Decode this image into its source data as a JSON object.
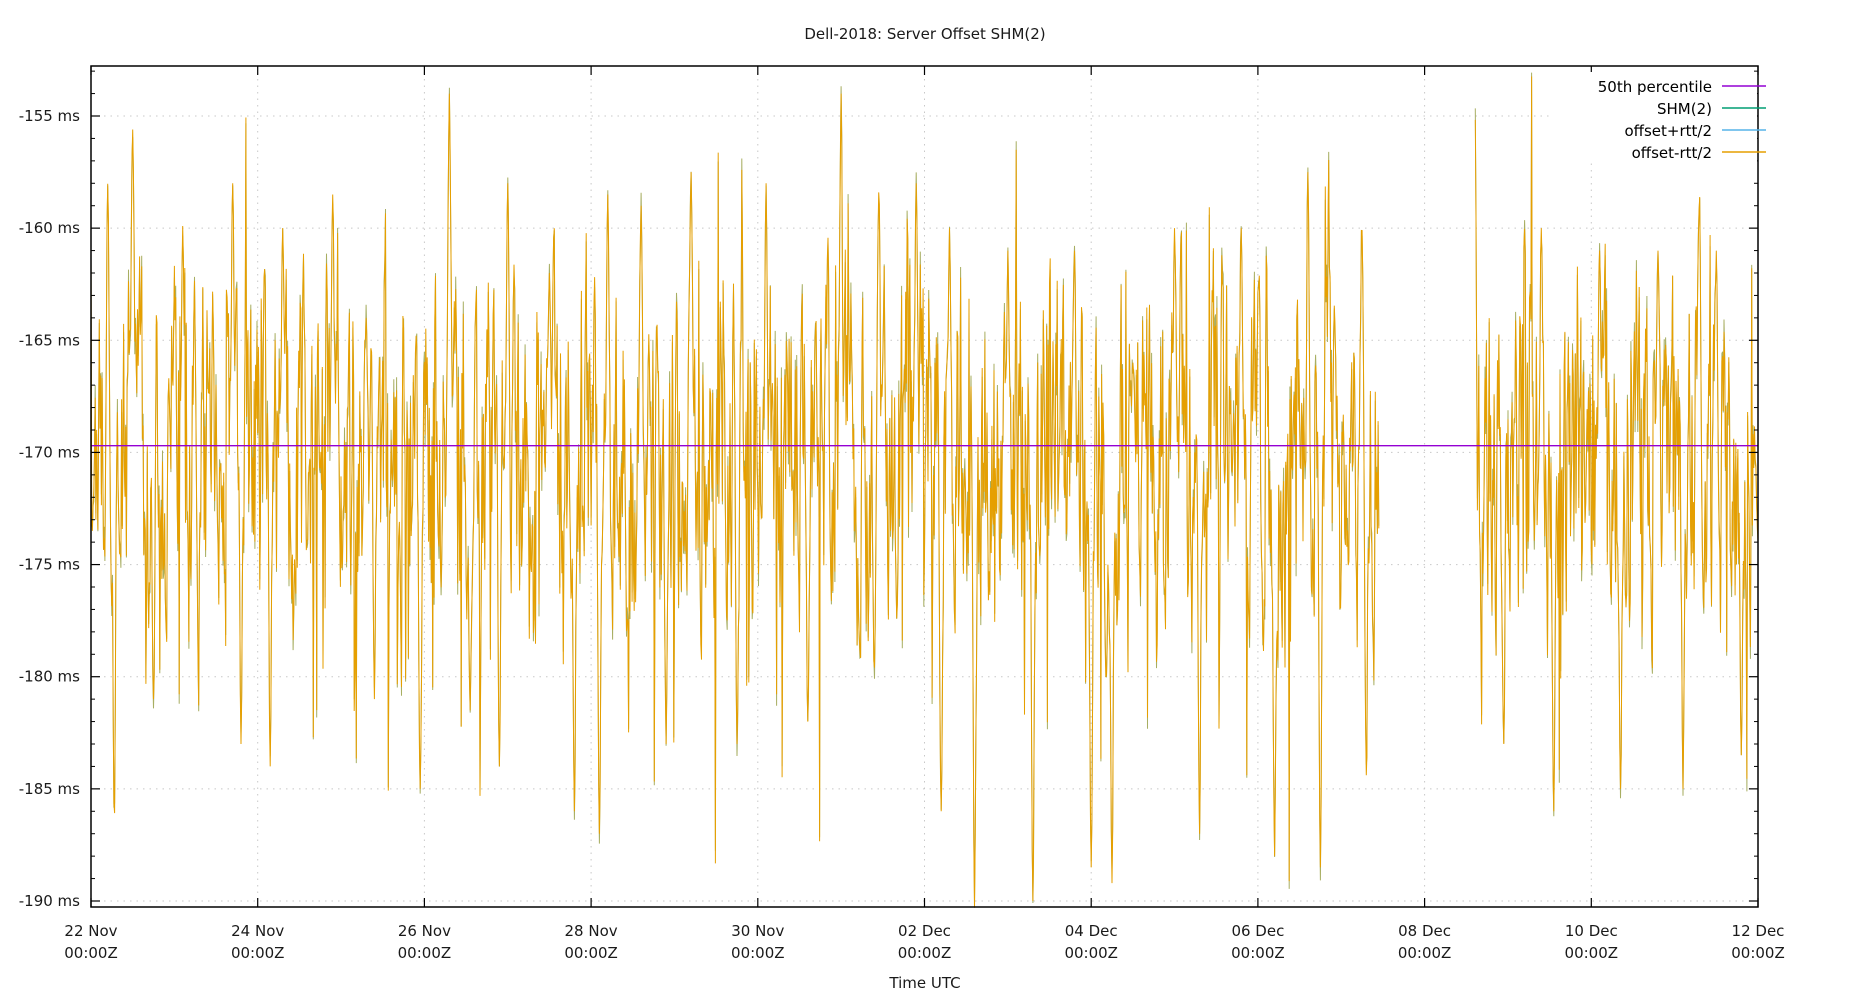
{
  "chart_data": {
    "type": "line",
    "title": "Dell-2018: Server Offset SHM(2)",
    "xlabel": "Time UTC",
    "ylabel": "",
    "x_ticks": [
      {
        "day": 0,
        "line1": "22 Nov",
        "line2": "00:00Z"
      },
      {
        "day": 2,
        "line1": "24 Nov",
        "line2": "00:00Z"
      },
      {
        "day": 4,
        "line1": "26 Nov",
        "line2": "00:00Z"
      },
      {
        "day": 6,
        "line1": "28 Nov",
        "line2": "00:00Z"
      },
      {
        "day": 8,
        "line1": "30 Nov",
        "line2": "00:00Z"
      },
      {
        "day": 10,
        "line1": "02 Dec",
        "line2": "00:00Z"
      },
      {
        "day": 12,
        "line1": "04 Dec",
        "line2": "00:00Z"
      },
      {
        "day": 14,
        "line1": "06 Dec",
        "line2": "00:00Z"
      },
      {
        "day": 16,
        "line1": "08 Dec",
        "line2": "00:00Z"
      },
      {
        "day": 18,
        "line1": "10 Dec",
        "line2": "00:00Z"
      },
      {
        "day": 20,
        "line1": "12 Dec",
        "line2": "00:00Z"
      }
    ],
    "xlim_days": [
      0,
      20
    ],
    "y_ticks": [
      {
        "value": -155,
        "label": "-155 ms"
      },
      {
        "value": -160,
        "label": "-160 ms"
      },
      {
        "value": -165,
        "label": "-165 ms"
      },
      {
        "value": -170,
        "label": "-170 ms"
      },
      {
        "value": -175,
        "label": "-175 ms"
      },
      {
        "value": -180,
        "label": "-180 ms"
      },
      {
        "value": -185,
        "label": "-185 ms"
      },
      {
        "value": -190,
        "label": "-190 ms"
      }
    ],
    "ylim": [
      -190.3,
      -152.6
    ],
    "grid": true,
    "legend_position": "top-right",
    "series": [
      {
        "name": "50th percentile",
        "color": "#9400d3",
        "kind": "constant",
        "value": -169.7
      },
      {
        "name": "SHM(2)",
        "color": "#009e73",
        "kind": "trace"
      },
      {
        "name": "offset+rtt/2",
        "color": "#56b4e9",
        "kind": "trace"
      },
      {
        "name": "offset-rtt/2",
        "color": "#e69f00",
        "kind": "trace"
      }
    ],
    "data_gap_days": [
      15.45,
      16.6
    ],
    "value_range_ms": [
      -190.3,
      -152.6
    ],
    "approx_extremes": [
      {
        "day": 0.2,
        "value": -158.0
      },
      {
        "day": 0.28,
        "value": -186.5
      },
      {
        "day": 0.5,
        "value": -155.6
      },
      {
        "day": 0.75,
        "value": -181.0
      },
      {
        "day": 1.25,
        "value": -157.5
      },
      {
        "day": 1.28,
        "value": -185.3
      },
      {
        "day": 1.7,
        "value": -158.0
      },
      {
        "day": 1.8,
        "value": -183.0
      },
      {
        "day": 2.15,
        "value": -184.0
      },
      {
        "day": 2.3,
        "value": -160.0
      },
      {
        "day": 2.9,
        "value": -158.5
      },
      {
        "day": 3.4,
        "value": -181.0
      },
      {
        "day": 3.3,
        "value": -164.0
      },
      {
        "day": 3.95,
        "value": -185.0
      },
      {
        "day": 4.3,
        "value": -154.0
      },
      {
        "day": 4.55,
        "value": -181.5
      },
      {
        "day": 4.9,
        "value": -184.0
      },
      {
        "day": 5.0,
        "value": -158.0
      },
      {
        "day": 5.5,
        "value": -162.0
      },
      {
        "day": 5.8,
        "value": -186.0
      },
      {
        "day": 6.1,
        "value": -187.0
      },
      {
        "day": 6.2,
        "value": -158.5
      },
      {
        "day": 6.6,
        "value": -159.0
      },
      {
        "day": 6.9,
        "value": -183.0
      },
      {
        "day": 7.2,
        "value": -157.5
      },
      {
        "day": 7.75,
        "value": -183.0
      },
      {
        "day": 8.1,
        "value": -158.0
      },
      {
        "day": 8.6,
        "value": -182.0
      },
      {
        "day": 9.0,
        "value": -154.0
      },
      {
        "day": 9.4,
        "value": -181.0
      },
      {
        "day": 9.45,
        "value": -157.0
      },
      {
        "day": 9.9,
        "value": -158.0
      },
      {
        "day": 10.2,
        "value": -186.0
      },
      {
        "day": 10.3,
        "value": -160.0
      },
      {
        "day": 10.6,
        "value": -190.3
      },
      {
        "day": 11.0,
        "value": -161.0
      },
      {
        "day": 11.3,
        "value": -190.0
      },
      {
        "day": 11.8,
        "value": -161.0
      },
      {
        "day": 12.0,
        "value": -188.5
      },
      {
        "day": 12.25,
        "value": -189.2
      },
      {
        "day": 12.5,
        "value": -166.0
      },
      {
        "day": 13.0,
        "value": -160.0
      },
      {
        "day": 13.3,
        "value": -187.0
      },
      {
        "day": 13.8,
        "value": -160.0
      },
      {
        "day": 14.2,
        "value": -188.0
      },
      {
        "day": 14.6,
        "value": -157.5
      },
      {
        "day": 14.75,
        "value": -188.5
      },
      {
        "day": 15.25,
        "value": -158.5
      },
      {
        "day": 15.3,
        "value": -186.0
      },
      {
        "day": 16.6,
        "value": -152.6
      },
      {
        "day": 16.95,
        "value": -183.0
      },
      {
        "day": 17.4,
        "value": -160.0
      },
      {
        "day": 17.55,
        "value": -186.0
      },
      {
        "day": 18.1,
        "value": -161.0
      },
      {
        "day": 18.35,
        "value": -185.0
      },
      {
        "day": 18.8,
        "value": -161.0
      },
      {
        "day": 19.1,
        "value": -185.0
      },
      {
        "day": 19.5,
        "value": -161.0
      },
      {
        "day": 19.8,
        "value": -183.5
      },
      {
        "day": 20.0,
        "value": -174.0
      }
    ]
  },
  "legend": {
    "items": [
      {
        "label": "50th percentile",
        "color": "#9400d3"
      },
      {
        "label": "SHM(2)",
        "color": "#009e73"
      },
      {
        "label": "offset+rtt/2",
        "color": "#56b4e9"
      },
      {
        "label": "offset-rtt/2",
        "color": "#e69f00"
      }
    ]
  },
  "colors": {
    "trace_orange": "#e69f00",
    "trace_blend": "#a8ae62",
    "median_purple": "#9400d3",
    "grid": "#c8c8c8",
    "axis": "#000000"
  }
}
